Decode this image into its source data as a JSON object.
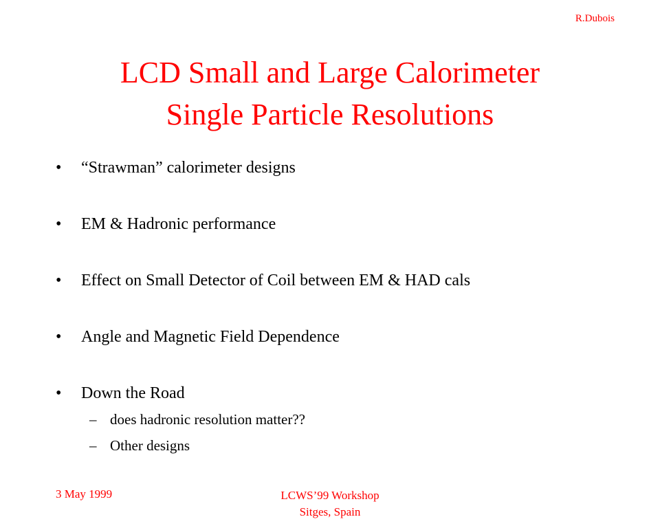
{
  "header": {
    "author": "R.Dubois"
  },
  "title": {
    "line1": "LCD Small and Large Calorimeter",
    "line2": "Single Particle Resolutions"
  },
  "bullets": [
    {
      "marker": "•",
      "text": "“Strawman” calorimeter designs"
    },
    {
      "marker": "•",
      "text": "EM & Hadronic performance"
    },
    {
      "marker": "•",
      "text": "Effect on Small Detector of Coil between EM & HAD cals"
    },
    {
      "marker": "•",
      "text": "Angle and Magnetic Field Dependence"
    },
    {
      "marker": "•",
      "text": "Down the Road",
      "subitems": [
        {
          "marker": "–",
          "text": "does hadronic resolution matter??"
        },
        {
          "marker": "–",
          "text": "Other designs"
        }
      ]
    }
  ],
  "footer": {
    "date": "3 May 1999",
    "event_line1": "LCWS’99 Workshop",
    "event_line2": "Sitges, Spain"
  },
  "colors": {
    "accent": "#ff0000",
    "text": "#000000"
  }
}
